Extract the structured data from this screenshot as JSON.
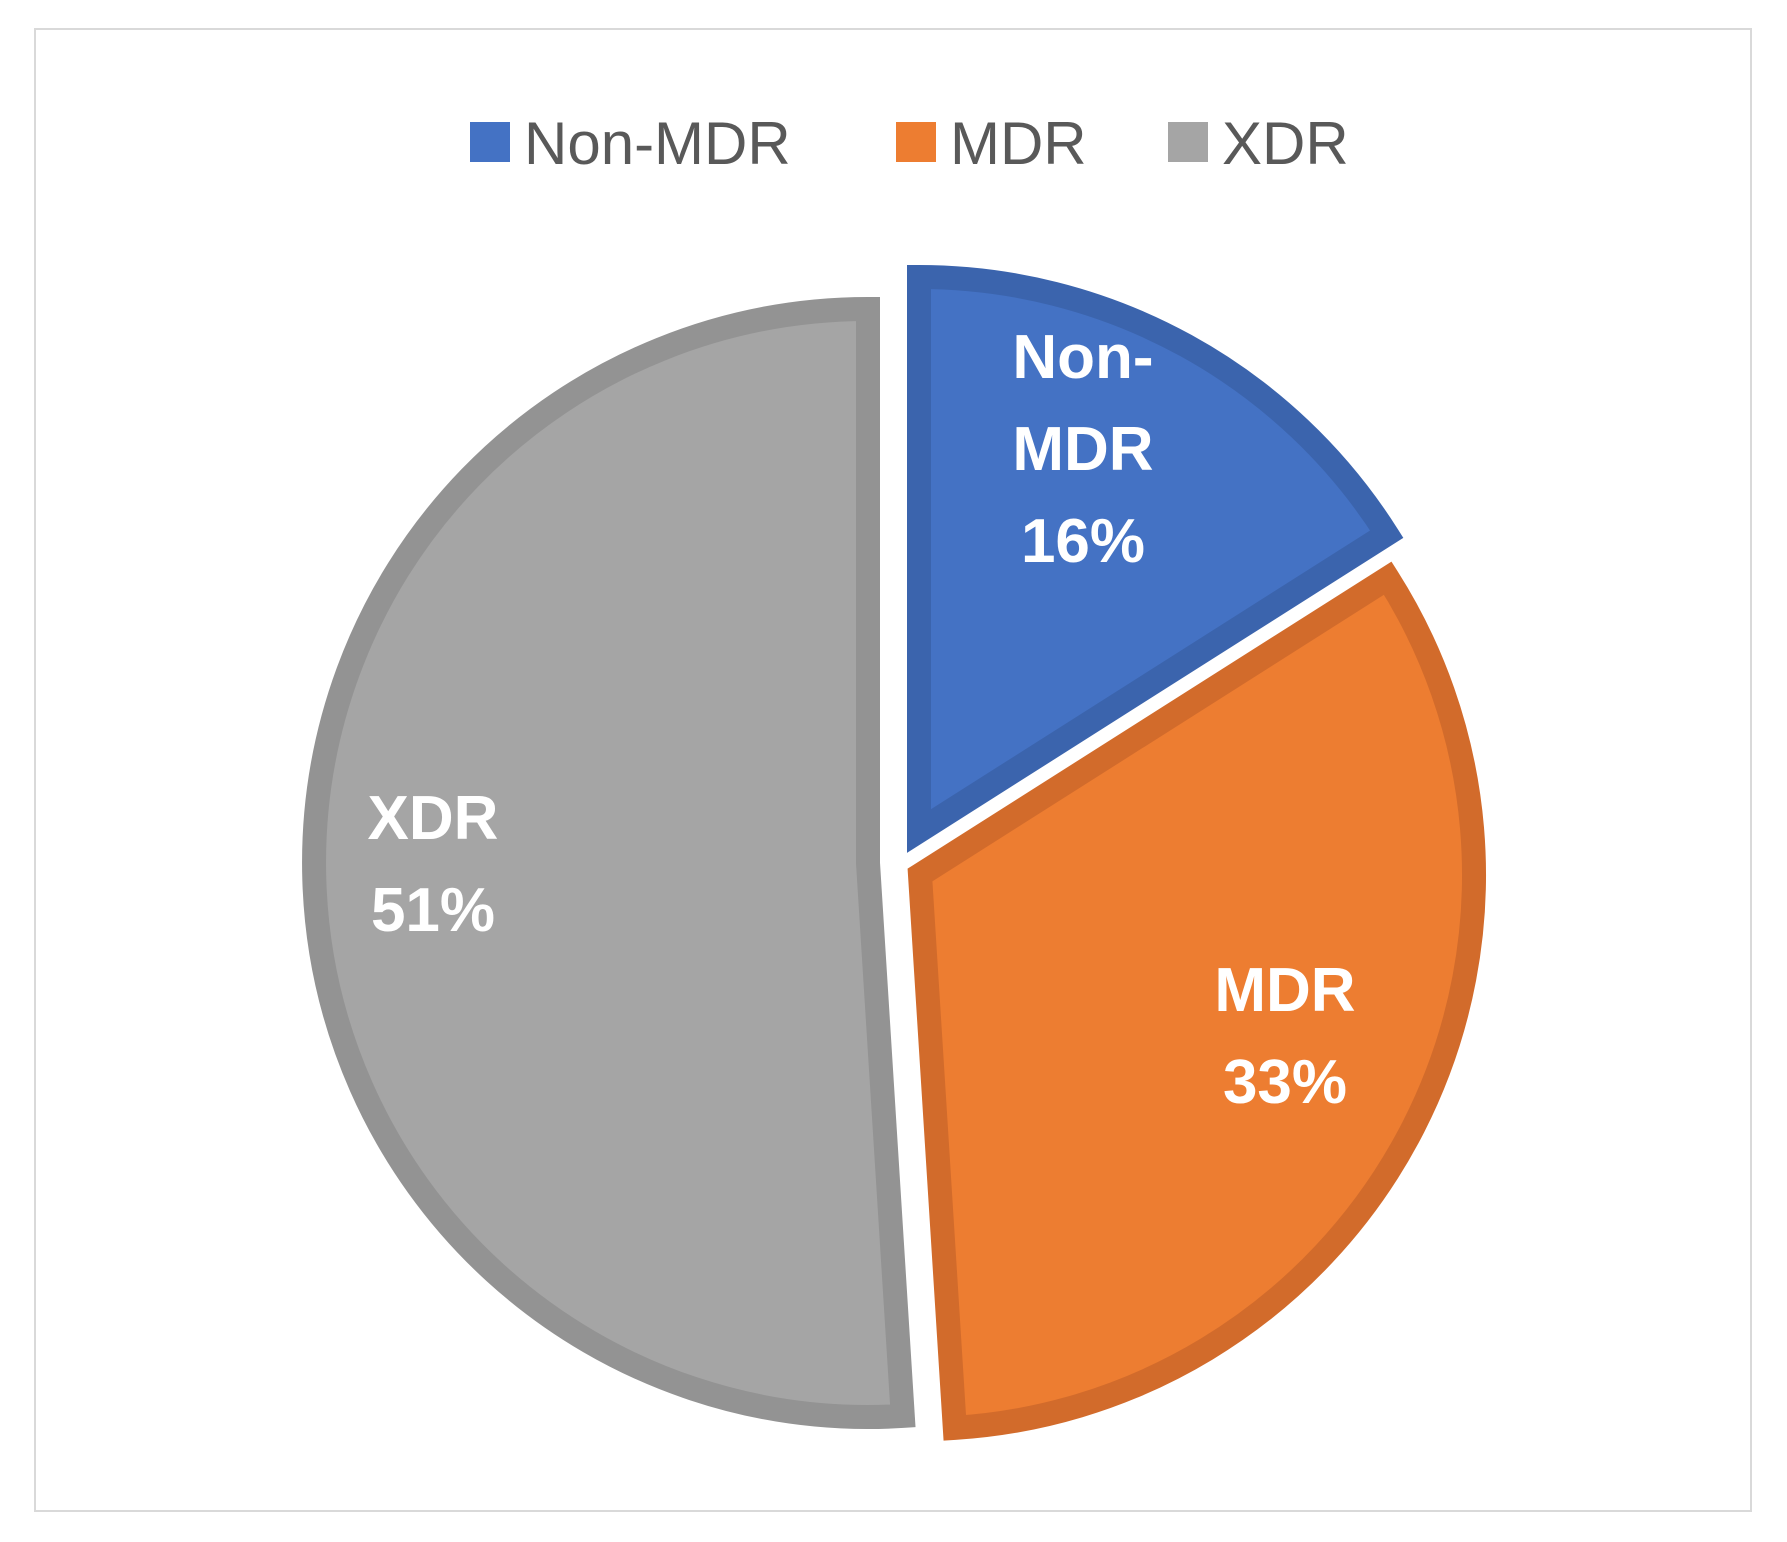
{
  "chart_data": {
    "type": "pie",
    "categories": [
      "Non-MDR",
      "MDR",
      "XDR"
    ],
    "values": [
      16,
      33,
      51
    ],
    "value_suffix": "%",
    "colors": [
      "#4472c4",
      "#ed7d31",
      "#a5a5a5"
    ],
    "border_colors": [
      "#3b64ad",
      "#d26b2b",
      "#939393"
    ],
    "legend": {
      "position": "top",
      "entries": [
        "Non-MDR",
        "MDR",
        "XDR"
      ]
    },
    "slice_labels": [
      [
        "Non-",
        "MDR",
        "16%"
      ],
      [
        "MDR",
        "33%"
      ],
      [
        "XDR",
        "51%"
      ]
    ],
    "exploded": true,
    "start_angle_deg": 0,
    "direction": "clockwise"
  }
}
